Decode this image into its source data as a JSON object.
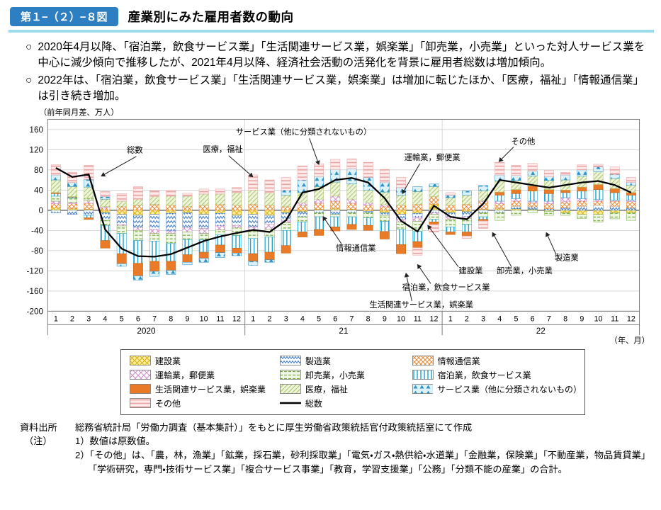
{
  "header": {
    "badge": "第１−（２）−８図",
    "title": "産業別にみた雇用者数の動向"
  },
  "layout_glyphs": {
    "bullet": "○"
  },
  "bullets": [
    "2020年4月以降、「宿泊業，飲食サービス業」「生活関連サービス業，娯楽業」「卸売業，小売業」といった対人サービス業を中心に減少傾向で推移したが、2021年4月以降、経済社会活動の活発化を背景に雇用者総数は増加傾向。",
    "2022年は、「宿泊業，飲食サービス業」「生活関連サービス業，娯楽業」は増加に転じたほか、「医療，福祉」「情報通信業」は引き続き増加。"
  ],
  "chart_data": {
    "type": "bar",
    "stacked": true,
    "unit_label": "（前年同月差、万人）",
    "x_axis_label": "（年、月）",
    "ylim": [
      -200,
      160
    ],
    "ytick_step": 40,
    "months": [
      1,
      2,
      3,
      4,
      5,
      6,
      7,
      8,
      9,
      10,
      11,
      12
    ],
    "years": [
      "2020",
      "21",
      "22"
    ],
    "series": [
      {
        "name": "建設業",
        "pattern": "pat-kensetsu",
        "stroke": "#caa312",
        "values": [
          5,
          3,
          2,
          -5,
          -8,
          -10,
          -8,
          -6,
          -5,
          -8,
          -6,
          -10,
          -8,
          -10,
          -5,
          -3,
          2,
          3,
          2,
          -2,
          -5,
          -8,
          -6,
          12,
          -5,
          -3,
          2,
          3,
          3,
          2,
          -2,
          -5,
          -8,
          -8,
          -5,
          -5
        ]
      },
      {
        "name": "製造業",
        "pattern": "pat-seizo",
        "stroke": "#3a78c2",
        "values": [
          -5,
          -8,
          -10,
          -15,
          -20,
          -25,
          -30,
          -35,
          -30,
          -28,
          -25,
          -20,
          -25,
          -18,
          -15,
          -10,
          -5,
          -8,
          -5,
          -3,
          -5,
          -10,
          -8,
          -5,
          -8,
          -10,
          -5,
          -5,
          5,
          5,
          3,
          5,
          8,
          10,
          8,
          5
        ]
      },
      {
        "name": "情報通信業",
        "pattern": "pat-joho",
        "stroke": "#e8872e",
        "values": [
          8,
          10,
          12,
          5,
          8,
          10,
          12,
          10,
          8,
          10,
          12,
          10,
          12,
          10,
          8,
          10,
          12,
          15,
          12,
          10,
          8,
          10,
          12,
          15,
          10,
          12,
          15,
          10,
          10,
          8,
          10,
          12,
          10,
          8,
          10,
          12
        ]
      },
      {
        "name": "運輸業，郵便業",
        "pattern": "pat-unyu",
        "stroke": "#cf8ac6",
        "values": [
          5,
          3,
          5,
          2,
          -3,
          -5,
          -8,
          -5,
          -8,
          -10,
          -8,
          -5,
          -8,
          -10,
          -5,
          5,
          8,
          10,
          8,
          5,
          3,
          -5,
          -8,
          -3,
          -5,
          -3,
          2,
          5,
          5,
          3,
          5,
          8,
          5,
          3,
          2,
          3
        ]
      },
      {
        "name": "卸売業，小売業",
        "pattern": "pat-oroshi",
        "stroke": "#76a83e",
        "values": [
          10,
          8,
          5,
          -10,
          -15,
          -20,
          -15,
          -20,
          -15,
          -12,
          -10,
          -15,
          -15,
          -15,
          -15,
          -10,
          -8,
          -5,
          -8,
          -10,
          -12,
          -15,
          -20,
          -10,
          -15,
          -12,
          -8,
          -15,
          -10,
          -5,
          -8,
          -5,
          -8,
          -15,
          -12,
          -15
        ]
      },
      {
        "name": "宿泊業，飲食サービス業",
        "pattern": "pat-shukuhaku",
        "stroke": "#1ba3cc",
        "values": [
          5,
          2,
          -5,
          -30,
          -40,
          -45,
          -40,
          -35,
          -30,
          -25,
          -20,
          -25,
          -30,
          -30,
          -30,
          -20,
          -25,
          -20,
          -15,
          -15,
          -20,
          -30,
          -20,
          -5,
          -10,
          -15,
          -5,
          12,
          10,
          20,
          15,
          10,
          15,
          20,
          15,
          10
        ]
      },
      {
        "name": "生活関連サービス業，娯楽業",
        "color": "#e87a28",
        "stroke": "#c96210",
        "values": [
          2,
          1,
          -3,
          -15,
          -20,
          -25,
          -20,
          -18,
          -15,
          -12,
          -15,
          -10,
          -15,
          -15,
          -15,
          -10,
          -12,
          -8,
          -10,
          -10,
          -15,
          -18,
          -12,
          -5,
          -5,
          -8,
          -3,
          6,
          8,
          10,
          8,
          5,
          8,
          10,
          8,
          5
        ]
      },
      {
        "name": "医療，福祉",
        "pattern": "pat-iryo",
        "stroke": "#a9c36a",
        "values": [
          25,
          20,
          22,
          15,
          10,
          12,
          15,
          18,
          20,
          22,
          20,
          25,
          28,
          25,
          22,
          20,
          25,
          28,
          30,
          25,
          25,
          20,
          25,
          20,
          15,
          18,
          20,
          22,
          18,
          20,
          18,
          20,
          22,
          25,
          20,
          15
        ]
      },
      {
        "name": "サービス業（他に分類されないもの）",
        "pattern": "pat-svc",
        "stroke": "#2b93c6",
        "values": [
          10,
          8,
          15,
          5,
          -5,
          -8,
          -10,
          -8,
          -5,
          -8,
          -10,
          -5,
          -8,
          -5,
          10,
          25,
          20,
          25,
          30,
          25,
          20,
          15,
          10,
          5,
          5,
          8,
          10,
          12,
          10,
          10,
          8,
          10,
          12,
          10,
          8,
          5
        ]
      },
      {
        "name": "その他",
        "pattern": "pat-sonota",
        "stroke": "#e9a3a3",
        "values": [
          20,
          20,
          28,
          10,
          15,
          25,
          12,
          12,
          6,
          10,
          10,
          10,
          30,
          25,
          25,
          28,
          25,
          20,
          20,
          30,
          25,
          20,
          -15,
          -15,
          5,
          -5,
          -15,
          25,
          20,
          15,
          12,
          5,
          10,
          5,
          15,
          10
        ]
      }
    ],
    "total_line": {
      "name": "総数",
      "color": "#000000",
      "values": [
        84,
        66,
        71,
        -38,
        -76,
        -91,
        -92,
        -87,
        -74,
        -61,
        -52,
        -45,
        -39,
        -43,
        -20,
        35,
        42,
        60,
        64,
        55,
        24,
        -21,
        -42,
        9,
        -13,
        -18,
        13,
        60,
        55,
        50,
        45,
        50,
        55,
        58,
        50,
        35
      ]
    },
    "annotations": [
      {
        "label": "総数",
        "text": [
          168,
          64
        ],
        "line": [
          170,
          69,
          122,
          96
        ]
      },
      {
        "label": "医療，福祉",
        "text": [
          289,
          63
        ],
        "line": [
          297,
          68,
          330,
          97
        ]
      },
      {
        "label": "サービス業（他に分類されないもの）",
        "text": [
          400,
          39
        ],
        "line": [
          408,
          44,
          421,
          80
        ]
      },
      {
        "label": "運輸業，郵便業",
        "text": [
          577,
          74
        ],
        "line": [
          560,
          79,
          536,
          120
        ]
      },
      {
        "label": "その他",
        "text": [
          702,
          52
        ],
        "line": [
          689,
          56,
          669,
          76
        ]
      },
      {
        "label": "情報通信業",
        "text": [
          472,
          199
        ],
        "line": [
          452,
          189,
          427,
          152
        ]
      },
      {
        "label": "建設業",
        "text": [
          630,
          230
        ],
        "line": [
          613,
          221,
          571,
          164
        ]
      },
      {
        "label": "卸売業，小売業",
        "text": [
          704,
          230
        ],
        "line": [
          686,
          221,
          660,
          174
        ]
      },
      {
        "label": "宿泊業，飲食サービス業",
        "text": [
          596,
          253
        ],
        "line": [
          575,
          244,
          557,
          218
        ]
      },
      {
        "label": "生活関連サービス業，娯楽業",
        "text": [
          562,
          277
        ],
        "line": [
          549,
          268,
          541,
          230
        ]
      },
      {
        "label": "製造業",
        "text": [
          762,
          212
        ],
        "line": [
          747,
          203,
          734,
          174
        ]
      }
    ]
  },
  "footer": {
    "source_label": "資料出所",
    "source_text": "総務省統計局「労働力調査（基本集計）」をもとに厚生労働省政策統括官付政策統括室にて作成",
    "note_label": "（注）",
    "notes": [
      "1）数値は原数値。",
      "2）「その他」は、「農，林，漁業」「鉱業，採石業，砂利採取業」「電気・ガス・熱供給・水道業」「金融業，保険業」「不動産業，物品賃貸業」「学術研究，専門・技術サービス業」「複合サービス事業」「教育，学習支援業」「公務」「分類不能の産業」の合計。"
    ]
  }
}
